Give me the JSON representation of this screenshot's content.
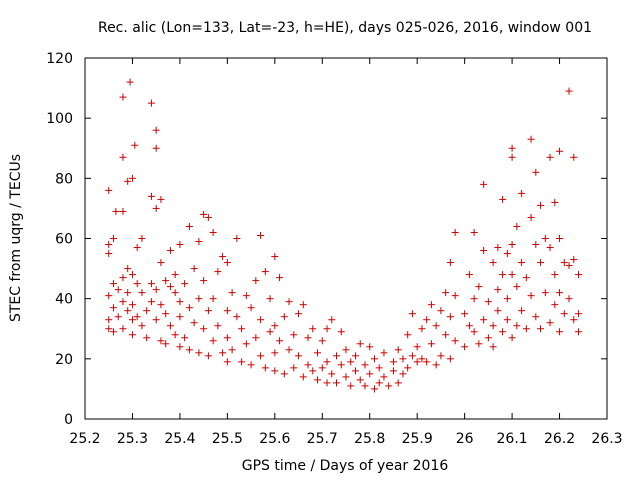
{
  "chart_data": {
    "type": "scatter",
    "title": "Rec. alic (Lon=133, Lat=-23, h=HE), days 025-026, 2016, window 001",
    "xlabel": "GPS time / Days of year 2016",
    "ylabel": "STEC from uqrg / TECUs",
    "xlim": [
      25.2,
      26.3
    ],
    "ylim": [
      0,
      120
    ],
    "x_ticks": [
      25.2,
      25.3,
      25.4,
      25.5,
      25.6,
      25.7,
      25.8,
      25.9,
      26.0,
      26.1,
      26.2,
      26.3
    ],
    "x_tick_labels": [
      "25.2",
      "25.3",
      "25.4",
      "25.5",
      "25.6",
      "25.7",
      "25.8",
      "25.9",
      "26",
      "26.1",
      "26.2",
      "26.3"
    ],
    "y_ticks": [
      0,
      20,
      40,
      60,
      80,
      100,
      120
    ],
    "y_tick_labels": [
      "0",
      "20",
      "40",
      "60",
      "80",
      "100",
      "120"
    ],
    "marker": "+",
    "grid": false,
    "series": [
      {
        "name": "STEC",
        "color": "#cc0000",
        "points": [
          [
            25.25,
            58
          ],
          [
            25.25,
            55
          ],
          [
            25.25,
            41
          ],
          [
            25.25,
            33
          ],
          [
            25.25,
            30
          ],
          [
            25.25,
            76
          ],
          [
            25.26,
            60
          ],
          [
            25.26,
            45
          ],
          [
            25.26,
            37
          ],
          [
            25.26,
            29
          ],
          [
            25.265,
            69
          ],
          [
            25.27,
            43
          ],
          [
            25.27,
            34
          ],
          [
            25.28,
            87
          ],
          [
            25.28,
            69
          ],
          [
            25.28,
            47
          ],
          [
            25.28,
            39
          ],
          [
            25.28,
            30
          ],
          [
            25.28,
            107
          ],
          [
            25.29,
            79
          ],
          [
            25.29,
            50
          ],
          [
            25.29,
            42
          ],
          [
            25.29,
            36
          ],
          [
            25.295,
            112
          ],
          [
            25.3,
            80
          ],
          [
            25.3,
            48
          ],
          [
            25.3,
            38
          ],
          [
            25.3,
            33
          ],
          [
            25.3,
            28
          ],
          [
            25.305,
            91
          ],
          [
            25.31,
            57
          ],
          [
            25.31,
            45
          ],
          [
            25.31,
            34
          ],
          [
            25.32,
            60
          ],
          [
            25.32,
            42
          ],
          [
            25.32,
            31
          ],
          [
            25.33,
            36
          ],
          [
            25.33,
            27
          ],
          [
            25.34,
            105
          ],
          [
            25.34,
            74
          ],
          [
            25.34,
            45
          ],
          [
            25.34,
            39
          ],
          [
            25.35,
            96
          ],
          [
            25.35,
            90
          ],
          [
            25.35,
            70
          ],
          [
            25.35,
            43
          ],
          [
            25.35,
            33
          ],
          [
            25.36,
            73
          ],
          [
            25.36,
            52
          ],
          [
            25.36,
            38
          ],
          [
            25.36,
            26
          ],
          [
            25.37,
            46
          ],
          [
            25.37,
            35
          ],
          [
            25.37,
            25
          ],
          [
            25.38,
            56
          ],
          [
            25.38,
            44
          ],
          [
            25.38,
            31
          ],
          [
            25.39,
            48
          ],
          [
            25.39,
            42
          ],
          [
            25.39,
            28
          ],
          [
            25.4,
            58
          ],
          [
            25.4,
            39
          ],
          [
            25.4,
            34
          ],
          [
            25.4,
            24
          ],
          [
            25.41,
            45
          ],
          [
            25.41,
            27
          ],
          [
            25.42,
            64
          ],
          [
            25.42,
            37
          ],
          [
            25.42,
            23
          ],
          [
            25.43,
            50
          ],
          [
            25.43,
            32
          ],
          [
            25.44,
            59
          ],
          [
            25.44,
            40
          ],
          [
            25.44,
            22
          ],
          [
            25.45,
            68
          ],
          [
            25.45,
            46
          ],
          [
            25.45,
            30
          ],
          [
            25.46,
            67
          ],
          [
            25.46,
            36
          ],
          [
            25.46,
            21
          ],
          [
            25.47,
            62
          ],
          [
            25.47,
            40
          ],
          [
            25.47,
            26
          ],
          [
            25.48,
            49
          ],
          [
            25.48,
            31
          ],
          [
            25.49,
            54
          ],
          [
            25.49,
            22
          ],
          [
            25.5,
            52
          ],
          [
            25.5,
            36
          ],
          [
            25.5,
            27
          ],
          [
            25.5,
            19
          ],
          [
            25.51,
            42
          ],
          [
            25.51,
            23
          ],
          [
            25.52,
            60
          ],
          [
            25.52,
            34
          ],
          [
            25.53,
            30
          ],
          [
            25.53,
            19
          ],
          [
            25.54,
            41
          ],
          [
            25.54,
            25
          ],
          [
            25.55,
            37
          ],
          [
            25.55,
            18
          ],
          [
            25.56,
            46
          ],
          [
            25.56,
            27
          ],
          [
            25.57,
            61
          ],
          [
            25.57,
            33
          ],
          [
            25.57,
            21
          ],
          [
            25.58,
            49
          ],
          [
            25.58,
            17
          ],
          [
            25.59,
            29
          ],
          [
            25.59,
            40
          ],
          [
            25.6,
            54
          ],
          [
            25.6,
            31
          ],
          [
            25.6,
            22
          ],
          [
            25.6,
            16
          ],
          [
            25.61,
            47
          ],
          [
            25.61,
            26
          ],
          [
            25.62,
            34
          ],
          [
            25.62,
            15
          ],
          [
            25.63,
            39
          ],
          [
            25.63,
            23
          ],
          [
            25.64,
            28
          ],
          [
            25.64,
            17
          ],
          [
            25.65,
            35
          ],
          [
            25.65,
            21
          ],
          [
            25.66,
            38
          ],
          [
            25.66,
            14
          ],
          [
            25.67,
            27
          ],
          [
            25.67,
            18
          ],
          [
            25.68,
            30
          ],
          [
            25.68,
            16
          ],
          [
            25.69,
            22
          ],
          [
            25.69,
            13
          ],
          [
            25.7,
            26
          ],
          [
            25.7,
            17
          ],
          [
            25.71,
            30
          ],
          [
            25.71,
            19
          ],
          [
            25.71,
            12
          ],
          [
            25.72,
            33
          ],
          [
            25.72,
            15
          ],
          [
            25.73,
            21
          ],
          [
            25.73,
            12
          ],
          [
            25.74,
            29
          ],
          [
            25.74,
            18
          ],
          [
            25.75,
            23
          ],
          [
            25.75,
            14
          ],
          [
            25.76,
            19
          ],
          [
            25.76,
            11
          ],
          [
            25.77,
            21
          ],
          [
            25.77,
            16
          ],
          [
            25.78,
            25
          ],
          [
            25.78,
            13
          ],
          [
            25.79,
            18
          ],
          [
            25.79,
            11
          ],
          [
            25.8,
            24
          ],
          [
            25.8,
            15
          ],
          [
            25.81,
            20
          ],
          [
            25.81,
            10
          ],
          [
            25.82,
            17
          ],
          [
            25.82,
            12
          ],
          [
            25.83,
            22
          ],
          [
            25.83,
            14
          ],
          [
            25.84,
            11
          ],
          [
            25.85,
            19
          ],
          [
            25.85,
            16
          ],
          [
            25.86,
            23
          ],
          [
            25.86,
            12
          ],
          [
            25.87,
            20
          ],
          [
            25.87,
            15
          ],
          [
            25.88,
            28
          ],
          [
            25.88,
            17
          ],
          [
            25.89,
            35
          ],
          [
            25.89,
            21
          ],
          [
            25.9,
            24
          ],
          [
            25.9,
            19
          ],
          [
            25.91,
            30
          ],
          [
            25.91,
            20
          ],
          [
            25.92,
            33
          ],
          [
            25.92,
            19
          ],
          [
            25.93,
            38
          ],
          [
            25.93,
            25
          ],
          [
            25.94,
            31
          ],
          [
            25.94,
            18
          ],
          [
            25.95,
            36
          ],
          [
            25.95,
            21
          ],
          [
            25.96,
            42
          ],
          [
            25.96,
            28
          ],
          [
            25.97,
            52
          ],
          [
            25.97,
            34
          ],
          [
            25.97,
            20
          ],
          [
            25.98,
            62
          ],
          [
            25.98,
            41
          ],
          [
            25.98,
            26
          ],
          [
            26.0,
            35
          ],
          [
            26.0,
            24
          ],
          [
            26.01,
            48
          ],
          [
            26.01,
            31
          ],
          [
            26.02,
            62
          ],
          [
            26.02,
            40
          ],
          [
            26.02,
            29
          ],
          [
            26.03,
            44
          ],
          [
            26.03,
            25
          ],
          [
            26.04,
            78
          ],
          [
            26.04,
            56
          ],
          [
            26.04,
            33
          ],
          [
            26.05,
            39
          ],
          [
            26.05,
            27
          ],
          [
            26.06,
            52
          ],
          [
            26.06,
            31
          ],
          [
            26.06,
            24
          ],
          [
            26.07,
            57
          ],
          [
            26.07,
            43
          ],
          [
            26.07,
            36
          ],
          [
            26.08,
            73
          ],
          [
            26.08,
            48
          ],
          [
            26.08,
            29
          ],
          [
            26.09,
            55
          ],
          [
            26.09,
            40
          ],
          [
            26.09,
            33
          ],
          [
            26.1,
            90
          ],
          [
            26.1,
            87
          ],
          [
            26.1,
            58
          ],
          [
            26.1,
            48
          ],
          [
            26.1,
            27
          ],
          [
            26.11,
            64
          ],
          [
            26.11,
            44
          ],
          [
            26.11,
            31
          ],
          [
            26.12,
            75
          ],
          [
            26.12,
            52
          ],
          [
            26.12,
            36
          ],
          [
            26.13,
            47
          ],
          [
            26.13,
            30
          ],
          [
            26.14,
            93
          ],
          [
            26.14,
            67
          ],
          [
            26.14,
            41
          ],
          [
            26.15,
            82
          ],
          [
            26.15,
            58
          ],
          [
            26.15,
            34
          ],
          [
            26.16,
            71
          ],
          [
            26.16,
            52
          ],
          [
            26.16,
            30
          ],
          [
            26.17,
            60
          ],
          [
            26.17,
            42
          ],
          [
            26.18,
            87
          ],
          [
            26.18,
            57
          ],
          [
            26.18,
            32
          ],
          [
            26.19,
            72
          ],
          [
            26.19,
            48
          ],
          [
            26.19,
            38
          ],
          [
            26.2,
            89
          ],
          [
            26.2,
            60
          ],
          [
            26.2,
            42
          ],
          [
            26.2,
            29
          ],
          [
            26.21,
            52
          ],
          [
            26.21,
            35
          ],
          [
            26.22,
            109
          ],
          [
            26.22,
            51
          ],
          [
            26.22,
            40
          ],
          [
            26.23,
            87
          ],
          [
            26.23,
            53
          ],
          [
            26.23,
            33
          ],
          [
            26.24,
            48
          ],
          [
            26.24,
            35
          ],
          [
            26.24,
            29
          ]
        ]
      }
    ]
  }
}
